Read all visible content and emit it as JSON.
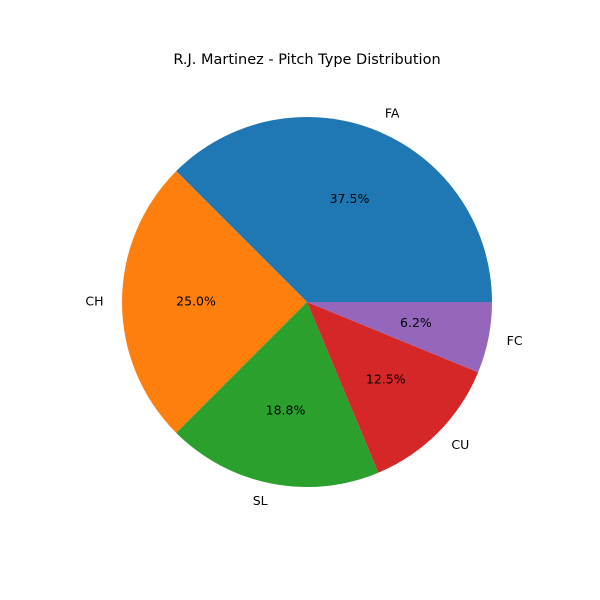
{
  "chart_data": {
    "type": "pie",
    "title": "R.J. Martinez - Pitch Type Distribution",
    "categories": [
      "FA",
      "CH",
      "SL",
      "CU",
      "FC"
    ],
    "values": [
      37.5,
      25.0,
      18.8,
      12.5,
      6.2
    ],
    "percent_labels": [
      "37.5%",
      "25.0%",
      "18.8%",
      "12.5%",
      "6.2%"
    ],
    "colors": [
      "#1f77b4",
      "#ff7f0e",
      "#2ca02c",
      "#d62728",
      "#9467bd"
    ],
    "start_angle_deg": 0,
    "direction": "counterclockwise",
    "legend": "none"
  }
}
